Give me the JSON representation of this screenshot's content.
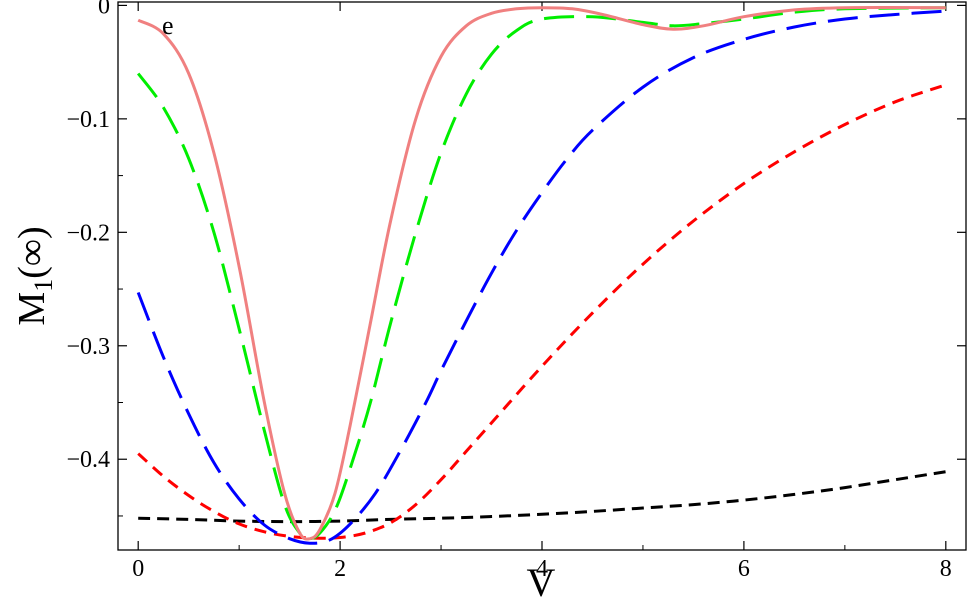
{
  "chart_data": {
    "type": "line",
    "panel_label": "e",
    "xlabel": "V",
    "ylabel_main": "M",
    "ylabel_sub": "1",
    "ylabel_tail": "(∞)",
    "xlim": [
      -0.2,
      8.2
    ],
    "ylim": [
      -0.48,
      0.003
    ],
    "xticks": [
      0,
      2,
      4,
      6,
      8
    ],
    "xtick_labels": [
      "0",
      "2",
      "4",
      "6",
      "8"
    ],
    "yticks": [
      0,
      -0.1,
      -0.2,
      -0.3,
      -0.4
    ],
    "ytick_labels": [
      "0",
      "−0.1",
      "−0.2",
      "−0.3",
      "−0.4"
    ],
    "grid": false,
    "series": [
      {
        "color": "#000000",
        "dash": "12,7",
        "points": [
          [
            0,
            -0.452
          ],
          [
            0.5,
            -0.453
          ],
          [
            1,
            -0.4545
          ],
          [
            1.5,
            -0.455
          ],
          [
            2,
            -0.4545
          ],
          [
            2.5,
            -0.453
          ],
          [
            3,
            -0.452
          ],
          [
            3.5,
            -0.4505
          ],
          [
            4,
            -0.4485
          ],
          [
            4.5,
            -0.446
          ],
          [
            5,
            -0.443
          ],
          [
            5.5,
            -0.44
          ],
          [
            6,
            -0.436
          ],
          [
            6.5,
            -0.431
          ],
          [
            7,
            -0.425
          ],
          [
            7.5,
            -0.418
          ],
          [
            8,
            -0.411
          ]
        ]
      },
      {
        "color": "#ff0000",
        "dash": "12,8",
        "points": [
          [
            0,
            -0.395
          ],
          [
            0.25,
            -0.415
          ],
          [
            0.5,
            -0.432
          ],
          [
            0.75,
            -0.446
          ],
          [
            1,
            -0.457
          ],
          [
            1.25,
            -0.464
          ],
          [
            1.5,
            -0.468
          ],
          [
            1.75,
            -0.4695
          ],
          [
            2,
            -0.469
          ],
          [
            2.25,
            -0.465
          ],
          [
            2.5,
            -0.456
          ],
          [
            2.75,
            -0.44
          ],
          [
            3,
            -0.418
          ],
          [
            3.25,
            -0.393
          ],
          [
            3.5,
            -0.368
          ],
          [
            4,
            -0.318
          ],
          [
            4.5,
            -0.271
          ],
          [
            5,
            -0.228
          ],
          [
            5.5,
            -0.19
          ],
          [
            6,
            -0.157
          ],
          [
            6.5,
            -0.129
          ],
          [
            7,
            -0.105
          ],
          [
            7.5,
            -0.085
          ],
          [
            8,
            -0.07
          ]
        ]
      },
      {
        "color": "#0000ff",
        "dash": "30,12",
        "points": [
          [
            0,
            -0.253
          ],
          [
            0.25,
            -0.31
          ],
          [
            0.5,
            -0.36
          ],
          [
            0.75,
            -0.403
          ],
          [
            1,
            -0.435
          ],
          [
            1.25,
            -0.458
          ],
          [
            1.5,
            -0.47
          ],
          [
            1.7,
            -0.474
          ],
          [
            1.9,
            -0.471
          ],
          [
            2.1,
            -0.457
          ],
          [
            2.35,
            -0.43
          ],
          [
            2.6,
            -0.392
          ],
          [
            2.85,
            -0.35
          ],
          [
            3,
            -0.322
          ],
          [
            3.25,
            -0.278
          ],
          [
            3.5,
            -0.236
          ],
          [
            3.75,
            -0.198
          ],
          [
            4,
            -0.165
          ],
          [
            4.25,
            -0.135
          ],
          [
            4.5,
            -0.11
          ],
          [
            5,
            -0.072
          ],
          [
            5.5,
            -0.046
          ],
          [
            6,
            -0.03
          ],
          [
            6.5,
            -0.019
          ],
          [
            7,
            -0.012
          ],
          [
            7.5,
            -0.008
          ],
          [
            8,
            -0.005
          ]
        ]
      },
      {
        "color": "#00ee00",
        "dash": "30,12",
        "points": [
          [
            0,
            -0.06
          ],
          [
            0.25,
            -0.09
          ],
          [
            0.5,
            -0.135
          ],
          [
            0.75,
            -0.2
          ],
          [
            1,
            -0.285
          ],
          [
            1.25,
            -0.375
          ],
          [
            1.45,
            -0.44
          ],
          [
            1.6,
            -0.465
          ],
          [
            1.7,
            -0.47
          ],
          [
            1.8,
            -0.465
          ],
          [
            1.95,
            -0.445
          ],
          [
            2.1,
            -0.408
          ],
          [
            2.3,
            -0.35
          ],
          [
            2.5,
            -0.28
          ],
          [
            2.75,
            -0.2
          ],
          [
            3,
            -0.13
          ],
          [
            3.25,
            -0.078
          ],
          [
            3.5,
            -0.043
          ],
          [
            3.75,
            -0.022
          ],
          [
            4,
            -0.012
          ],
          [
            4.5,
            -0.01
          ],
          [
            5,
            -0.015
          ],
          [
            5.3,
            -0.018
          ],
          [
            5.6,
            -0.016
          ],
          [
            6,
            -0.012
          ],
          [
            6.5,
            -0.006
          ],
          [
            7,
            -0.003
          ],
          [
            8,
            -0.002
          ]
        ]
      },
      {
        "color": "#f08080",
        "dash": "",
        "points": [
          [
            0,
            -0.013
          ],
          [
            0.25,
            -0.025
          ],
          [
            0.5,
            -0.06
          ],
          [
            0.75,
            -0.13
          ],
          [
            1,
            -0.23
          ],
          [
            1.25,
            -0.35
          ],
          [
            1.45,
            -0.43
          ],
          [
            1.6,
            -0.465
          ],
          [
            1.7,
            -0.47
          ],
          [
            1.8,
            -0.462
          ],
          [
            1.95,
            -0.43
          ],
          [
            2.1,
            -0.37
          ],
          [
            2.3,
            -0.28
          ],
          [
            2.5,
            -0.19
          ],
          [
            2.75,
            -0.1
          ],
          [
            3,
            -0.045
          ],
          [
            3.25,
            -0.018
          ],
          [
            3.5,
            -0.007
          ],
          [
            3.75,
            -0.003
          ],
          [
            4,
            -0.002
          ],
          [
            4.3,
            -0.003
          ],
          [
            4.6,
            -0.008
          ],
          [
            5,
            -0.017
          ],
          [
            5.3,
            -0.021
          ],
          [
            5.6,
            -0.018
          ],
          [
            6,
            -0.01
          ],
          [
            6.5,
            -0.004
          ],
          [
            7,
            -0.002
          ],
          [
            8,
            -0.002
          ]
        ]
      }
    ]
  }
}
